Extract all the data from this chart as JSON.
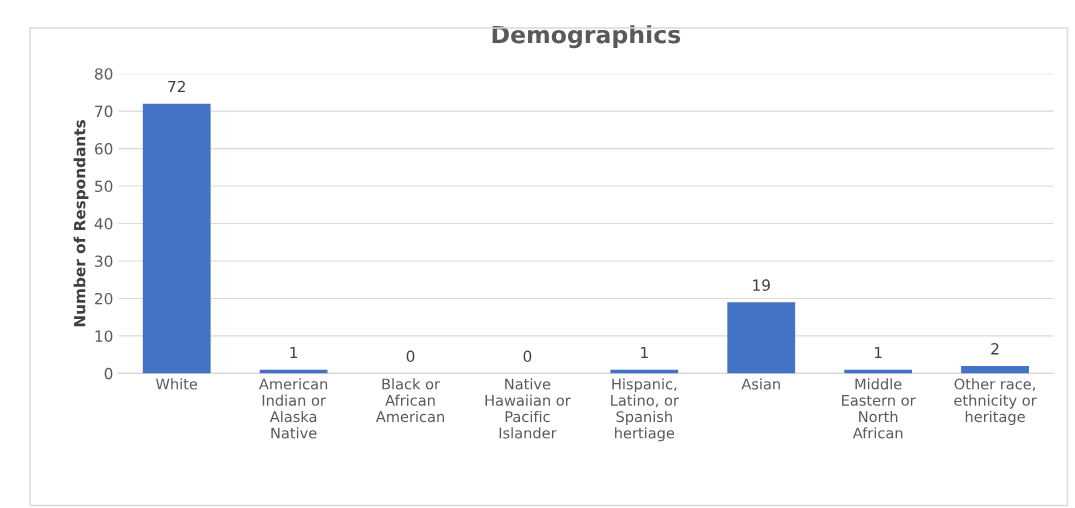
{
  "chart_data": {
    "type": "bar",
    "title": "Demographics",
    "ylabel": "Number of Respondants",
    "categories": [
      "White",
      "American\nIndian or\nAlaska\nNative",
      "Black or\nAfrican\nAmerican",
      "Native\nHawaiian or\nPacific\nIslander",
      "Hispanic,\nLatino, or\nSpanish\nhertiage",
      "Asian",
      "Middle\nEastern or\nNorth\nAfrican",
      "Other race,\nethnicity or\nheritage"
    ],
    "values": [
      72,
      1,
      0,
      0,
      1,
      19,
      1,
      2
    ],
    "color": "#4472c4",
    "data_labels": true,
    "ylim": [
      0,
      80
    ],
    "yticks": [
      0,
      10,
      20,
      30,
      40,
      50,
      60,
      70,
      80
    ],
    "grid": "y"
  }
}
